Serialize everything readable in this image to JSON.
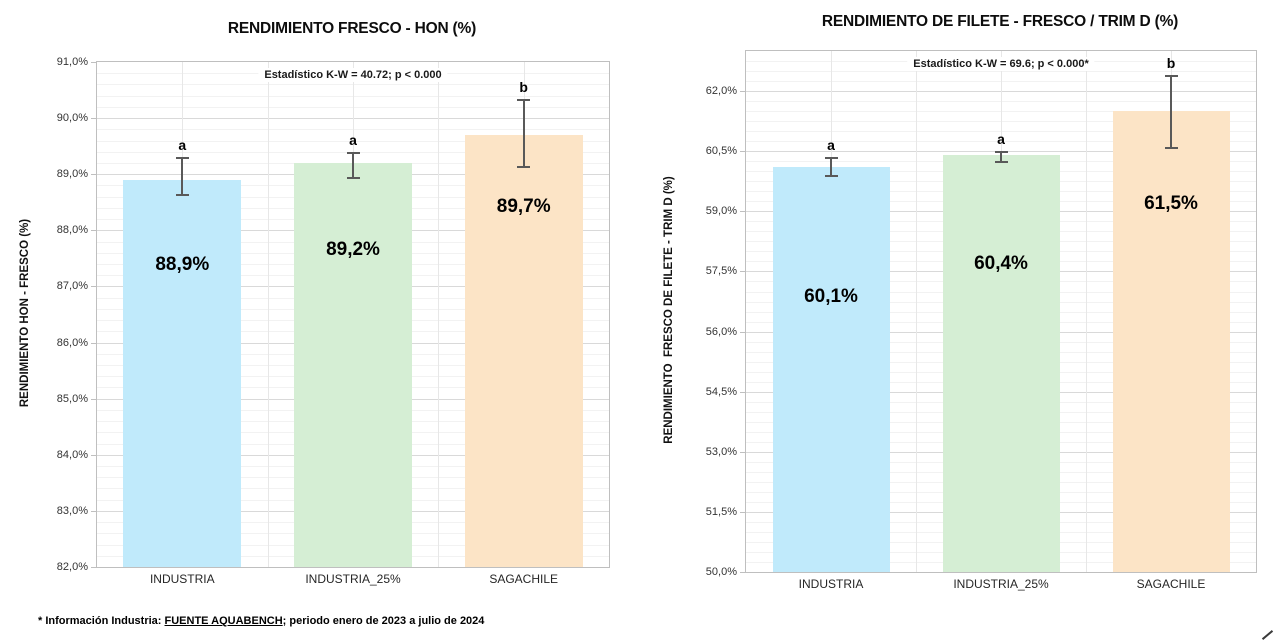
{
  "footnote": {
    "prefix": "* Información Industria: ",
    "source": "FUENTE AQUABENCH",
    "suffix": "; periodo enero de 2023 a julio de 2024"
  },
  "chart_data": [
    {
      "type": "bar",
      "title": "RENDIMIENTO FRESCO - HON (%)",
      "annotation": "Estadístico K-W = 40.72; p < 0.000",
      "ylabel": "RENDIMIENTO HON - FRESCO (%)",
      "xlabel": "",
      "categories": [
        "INDUSTRIA",
        "INDUSTRIA_25%",
        "SAGACHILE"
      ],
      "values": [
        88.9,
        89.2,
        89.7
      ],
      "value_labels": [
        "88,9%",
        "89,2%",
        "89,7%"
      ],
      "sig_letters": [
        "a",
        "a",
        "b"
      ],
      "error_low": [
        88.65,
        88.95,
        89.15
      ],
      "error_high": [
        89.3,
        89.4,
        90.35
      ],
      "bar_colors": [
        "#C0EAFB",
        "#D5EED4",
        "#FCE4C6"
      ],
      "ylim": [
        82,
        91
      ],
      "major_step": 1.0,
      "minor_step": 0.2,
      "tick_values": [
        82,
        83,
        84,
        85,
        86,
        87,
        88,
        89,
        90,
        91
      ],
      "tick_labels": [
        "82,0%",
        "83,0%",
        "84,0%",
        "85,0%",
        "86,0%",
        "87,0%",
        "88,0%",
        "89,0%",
        "90,0%",
        "91,0%"
      ],
      "grid": true,
      "legend": false
    },
    {
      "type": "bar",
      "title": "RENDIMIENTO DE FILETE - FRESCO / TRIM D (%)",
      "annotation": "Estadístico K-W = 69.6; p < 0.000*",
      "ylabel": "RENDIMIENTO  FRESCO DE FILETE - TRIM D (%)",
      "xlabel": "",
      "categories": [
        "INDUSTRIA",
        "INDUSTRIA_25%",
        "SAGACHILE"
      ],
      "values": [
        60.1,
        60.4,
        61.5
      ],
      "value_labels": [
        "60,1%",
        "60,4%",
        "61,5%"
      ],
      "sig_letters": [
        "a",
        "a",
        "b"
      ],
      "error_low": [
        59.9,
        60.25,
        60.6
      ],
      "error_high": [
        60.35,
        60.5,
        62.4
      ],
      "bar_colors": [
        "#C0EAFB",
        "#D5EED4",
        "#FCE4C6"
      ],
      "ylim": [
        50,
        63
      ],
      "major_step": 1.5,
      "minor_step": 0.25,
      "tick_values": [
        50,
        51.5,
        53,
        54.5,
        56,
        57.5,
        59,
        60.5,
        62
      ],
      "tick_labels": [
        "50,0%",
        "51,5%",
        "53,0%",
        "54,5%",
        "56,0%",
        "57,5%",
        "59,0%",
        "60,5%",
        "62,0%"
      ],
      "grid": true,
      "legend": false
    }
  ]
}
